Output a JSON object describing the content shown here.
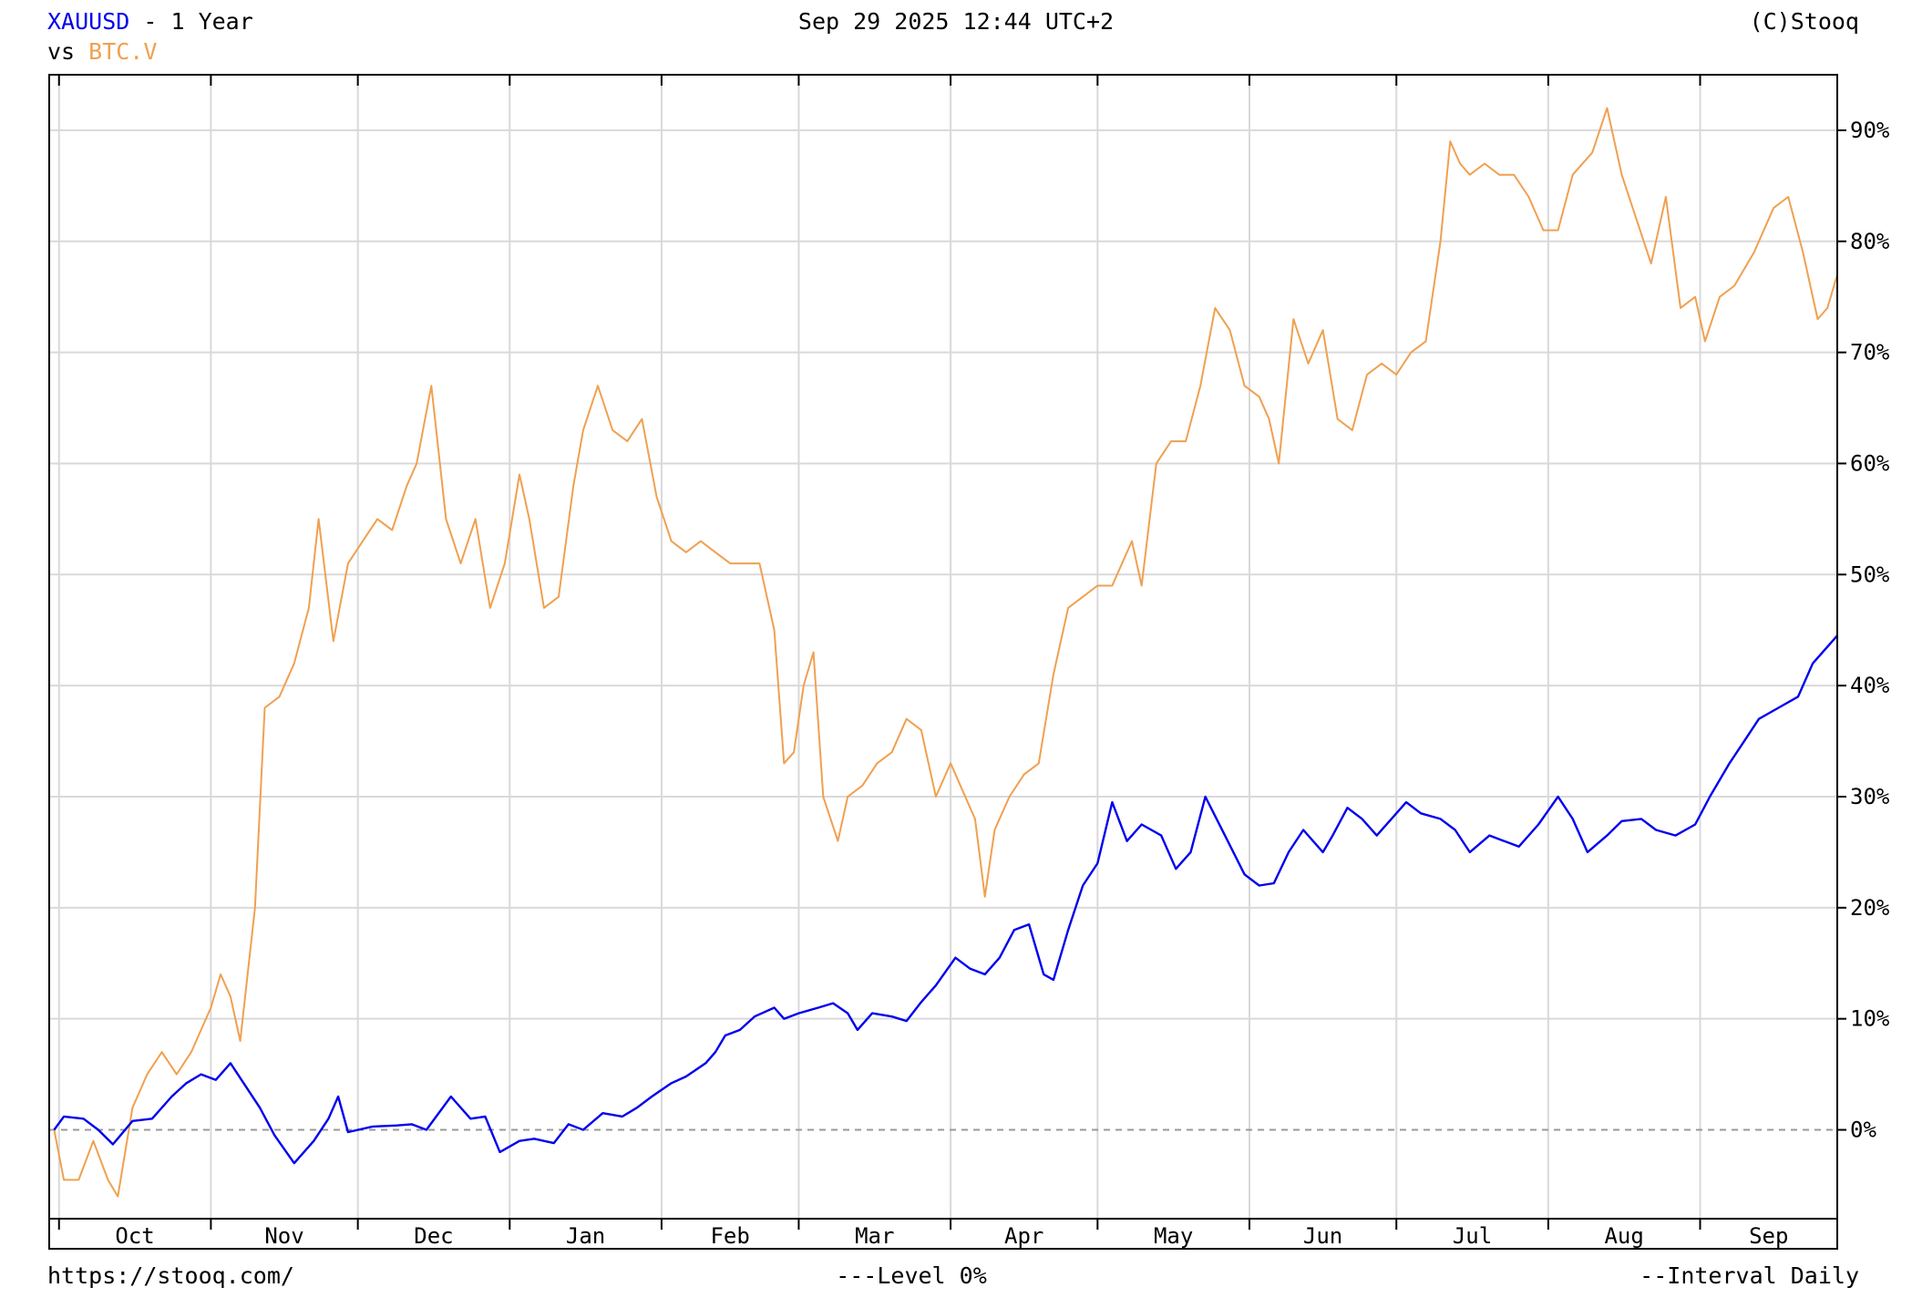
{
  "header": {
    "symbol": "XAUUSD",
    "period": " - 1 Year",
    "vs_label": "vs ",
    "compare_symbol": "BTC.V",
    "timestamp": "Sep 29 2025 12:44 UTC+2",
    "copyright": "(C)Stooq"
  },
  "footer": {
    "url": "https://stooq.com/",
    "level_text": "---Level 0%",
    "interval_text": "--Interval Daily"
  },
  "colors": {
    "xauusd": "#0000ee",
    "btc": "#f0a050",
    "grid": "#d9d9d9",
    "frame": "#000000",
    "zero_line": "#999999"
  },
  "chart_data": {
    "type": "line",
    "xlabel": "",
    "ylabel": "",
    "ylim": [
      -8,
      95
    ],
    "y_ticks": [
      0,
      10,
      20,
      30,
      40,
      50,
      60,
      70,
      80,
      90
    ],
    "y_tick_labels": [
      "0%",
      "10%",
      "20%",
      "30%",
      "40%",
      "50%",
      "60%",
      "70%",
      "80%",
      "90%"
    ],
    "x_tick_labels": [
      "Oct",
      "Nov",
      "Dec",
      "Jan",
      "Feb",
      "Mar",
      "Apr",
      "May",
      "Jun",
      "Jul",
      "Aug",
      "Sep"
    ],
    "x_range": [
      "2024-09-29",
      "2025-09-29"
    ],
    "month_boundaries": [
      "2024-10-01",
      "2024-11-01",
      "2024-12-01",
      "2025-01-01",
      "2025-02-01",
      "2025-03-01",
      "2025-04-01",
      "2025-05-01",
      "2025-06-01",
      "2025-07-01",
      "2025-08-01",
      "2025-09-01"
    ],
    "reference_line": {
      "y": 0,
      "label": "Level 0%"
    },
    "grid": true,
    "series": [
      {
        "name": "XAUUSD",
        "points": [
          [
            "2024-09-30",
            0
          ],
          [
            "2024-10-02",
            1.2
          ],
          [
            "2024-10-06",
            1
          ],
          [
            "2024-10-09",
            0
          ],
          [
            "2024-10-12",
            -1.3
          ],
          [
            "2024-10-16",
            0.8
          ],
          [
            "2024-10-20",
            1
          ],
          [
            "2024-10-24",
            3
          ],
          [
            "2024-10-27",
            4.2
          ],
          [
            "2024-10-30",
            5
          ],
          [
            "2024-11-02",
            4.5
          ],
          [
            "2024-11-05",
            6
          ],
          [
            "2024-11-08",
            4
          ],
          [
            "2024-11-11",
            2
          ],
          [
            "2024-11-14",
            -0.5
          ],
          [
            "2024-11-18",
            -3
          ],
          [
            "2024-11-22",
            -1
          ],
          [
            "2024-11-25",
            1
          ],
          [
            "2024-11-27",
            3
          ],
          [
            "2024-11-29",
            -0.2
          ],
          [
            "2024-12-04",
            0.3
          ],
          [
            "2024-12-09",
            0.4
          ],
          [
            "2024-12-12",
            0.5
          ],
          [
            "2024-12-15",
            0
          ],
          [
            "2024-12-20",
            3
          ],
          [
            "2024-12-24",
            1
          ],
          [
            "2024-12-27",
            1.2
          ],
          [
            "2024-12-30",
            -2
          ],
          [
            "2025-01-03",
            -1
          ],
          [
            "2025-01-06",
            -0.8
          ],
          [
            "2025-01-10",
            -1.2
          ],
          [
            "2025-01-13",
            0.5
          ],
          [
            "2025-01-16",
            0
          ],
          [
            "2025-01-20",
            1.5
          ],
          [
            "2025-01-24",
            1.2
          ],
          [
            "2025-01-27",
            2
          ],
          [
            "2025-01-30",
            3
          ],
          [
            "2025-02-03",
            4.2
          ],
          [
            "2025-02-06",
            4.8
          ],
          [
            "2025-02-10",
            6
          ],
          [
            "2025-02-12",
            7
          ],
          [
            "2025-02-14",
            8.5
          ],
          [
            "2025-02-17",
            9
          ],
          [
            "2025-02-20",
            10.2
          ],
          [
            "2025-02-24",
            11
          ],
          [
            "2025-02-26",
            10
          ],
          [
            "2025-03-01",
            10.5
          ],
          [
            "2025-03-05",
            11
          ],
          [
            "2025-03-08",
            11.4
          ],
          [
            "2025-03-11",
            10.5
          ],
          [
            "2025-03-13",
            9
          ],
          [
            "2025-03-16",
            10.5
          ],
          [
            "2025-03-20",
            10.2
          ],
          [
            "2025-03-23",
            9.8
          ],
          [
            "2025-03-26",
            11.5
          ],
          [
            "2025-03-29",
            13
          ],
          [
            "2025-04-02",
            15.5
          ],
          [
            "2025-04-05",
            14.5
          ],
          [
            "2025-04-08",
            14
          ],
          [
            "2025-04-11",
            15.5
          ],
          [
            "2025-04-14",
            18
          ],
          [
            "2025-04-17",
            18.5
          ],
          [
            "2025-04-20",
            14
          ],
          [
            "2025-04-22",
            13.5
          ],
          [
            "2025-04-25",
            18
          ],
          [
            "2025-04-28",
            22
          ],
          [
            "2025-05-01",
            24
          ],
          [
            "2025-05-04",
            29.5
          ],
          [
            "2025-05-07",
            26
          ],
          [
            "2025-05-10",
            27.5
          ],
          [
            "2025-05-14",
            26.5
          ],
          [
            "2025-05-17",
            23.5
          ],
          [
            "2025-05-20",
            25
          ],
          [
            "2025-05-23",
            30
          ],
          [
            "2025-05-27",
            26.5
          ],
          [
            "2025-05-31",
            23
          ],
          [
            "2025-06-03",
            22
          ],
          [
            "2025-06-06",
            22.2
          ],
          [
            "2025-06-09",
            25
          ],
          [
            "2025-06-12",
            27
          ],
          [
            "2025-06-16",
            25
          ],
          [
            "2025-06-18",
            26.5
          ],
          [
            "2025-06-21",
            29
          ],
          [
            "2025-06-24",
            28
          ],
          [
            "2025-06-27",
            26.5
          ],
          [
            "2025-06-30",
            28
          ],
          [
            "2025-07-03",
            29.5
          ],
          [
            "2025-07-06",
            28.5
          ],
          [
            "2025-07-10",
            28
          ],
          [
            "2025-07-13",
            27
          ],
          [
            "2025-07-16",
            25
          ],
          [
            "2025-07-20",
            26.5
          ],
          [
            "2025-07-23",
            26
          ],
          [
            "2025-07-26",
            25.5
          ],
          [
            "2025-07-30",
            27.5
          ],
          [
            "2025-08-03",
            30
          ],
          [
            "2025-08-06",
            28
          ],
          [
            "2025-08-09",
            25
          ],
          [
            "2025-08-13",
            26.5
          ],
          [
            "2025-08-16",
            27.8
          ],
          [
            "2025-08-20",
            28
          ],
          [
            "2025-08-23",
            27
          ],
          [
            "2025-08-27",
            26.5
          ],
          [
            "2025-08-31",
            27.5
          ],
          [
            "2025-09-03",
            30
          ],
          [
            "2025-09-07",
            33
          ],
          [
            "2025-09-10",
            35
          ],
          [
            "2025-09-13",
            37
          ],
          [
            "2025-09-17",
            38
          ],
          [
            "2025-09-21",
            39
          ],
          [
            "2025-09-24",
            42
          ],
          [
            "2025-09-29",
            44.5
          ]
        ]
      },
      {
        "name": "BTC.V",
        "points": [
          [
            "2024-09-30",
            0
          ],
          [
            "2024-10-02",
            -4.5
          ],
          [
            "2024-10-05",
            -4.5
          ],
          [
            "2024-10-08",
            -1
          ],
          [
            "2024-10-11",
            -4.5
          ],
          [
            "2024-10-13",
            -6
          ],
          [
            "2024-10-16",
            2
          ],
          [
            "2024-10-19",
            5
          ],
          [
            "2024-10-22",
            7
          ],
          [
            "2024-10-25",
            5
          ],
          [
            "2024-10-28",
            7
          ],
          [
            "2024-11-01",
            11
          ],
          [
            "2024-11-03",
            14
          ],
          [
            "2024-11-05",
            12
          ],
          [
            "2024-11-07",
            8
          ],
          [
            "2024-11-10",
            20
          ],
          [
            "2024-11-12",
            38
          ],
          [
            "2024-11-15",
            39
          ],
          [
            "2024-11-18",
            42
          ],
          [
            "2024-11-21",
            47
          ],
          [
            "2024-11-23",
            55
          ],
          [
            "2024-11-26",
            44
          ],
          [
            "2024-11-29",
            51
          ],
          [
            "2024-12-02",
            53
          ],
          [
            "2024-12-05",
            55
          ],
          [
            "2024-12-08",
            54
          ],
          [
            "2024-12-11",
            58
          ],
          [
            "2024-12-13",
            60
          ],
          [
            "2024-12-16",
            67
          ],
          [
            "2024-12-19",
            55
          ],
          [
            "2024-12-22",
            51
          ],
          [
            "2024-12-25",
            55
          ],
          [
            "2024-12-28",
            47
          ],
          [
            "2024-12-31",
            51
          ],
          [
            "2025-01-03",
            59
          ],
          [
            "2025-01-05",
            55
          ],
          [
            "2025-01-08",
            47
          ],
          [
            "2025-01-11",
            48
          ],
          [
            "2025-01-14",
            58
          ],
          [
            "2025-01-16",
            63
          ],
          [
            "2025-01-19",
            67
          ],
          [
            "2025-01-22",
            63
          ],
          [
            "2025-01-25",
            62
          ],
          [
            "2025-01-28",
            64
          ],
          [
            "2025-01-31",
            57
          ],
          [
            "2025-02-03",
            53
          ],
          [
            "2025-02-06",
            52
          ],
          [
            "2025-02-09",
            53
          ],
          [
            "2025-02-12",
            52
          ],
          [
            "2025-02-15",
            51
          ],
          [
            "2025-02-18",
            51
          ],
          [
            "2025-02-21",
            51
          ],
          [
            "2025-02-24",
            45
          ],
          [
            "2025-02-26",
            33
          ],
          [
            "2025-02-28",
            34
          ],
          [
            "2025-03-02",
            40
          ],
          [
            "2025-03-04",
            43
          ],
          [
            "2025-03-06",
            30
          ],
          [
            "2025-03-09",
            26
          ],
          [
            "2025-03-11",
            30
          ],
          [
            "2025-03-14",
            31
          ],
          [
            "2025-03-17",
            33
          ],
          [
            "2025-03-20",
            34
          ],
          [
            "2025-03-23",
            37
          ],
          [
            "2025-03-26",
            36
          ],
          [
            "2025-03-29",
            30
          ],
          [
            "2025-04-01",
            33
          ],
          [
            "2025-04-03",
            31
          ],
          [
            "2025-04-06",
            28
          ],
          [
            "2025-04-08",
            21
          ],
          [
            "2025-04-10",
            27
          ],
          [
            "2025-04-13",
            30
          ],
          [
            "2025-04-16",
            32
          ],
          [
            "2025-04-19",
            33
          ],
          [
            "2025-04-22",
            41
          ],
          [
            "2025-04-25",
            47
          ],
          [
            "2025-04-28",
            48
          ],
          [
            "2025-05-01",
            49
          ],
          [
            "2025-05-04",
            49
          ],
          [
            "2025-05-08",
            53
          ],
          [
            "2025-05-10",
            49
          ],
          [
            "2025-05-13",
            60
          ],
          [
            "2025-05-16",
            62
          ],
          [
            "2025-05-19",
            62
          ],
          [
            "2025-05-22",
            67
          ],
          [
            "2025-05-25",
            74
          ],
          [
            "2025-05-28",
            72
          ],
          [
            "2025-05-31",
            67
          ],
          [
            "2025-06-03",
            66
          ],
          [
            "2025-06-05",
            64
          ],
          [
            "2025-06-07",
            60
          ],
          [
            "2025-06-10",
            73
          ],
          [
            "2025-06-13",
            69
          ],
          [
            "2025-06-16",
            72
          ],
          [
            "2025-06-19",
            64
          ],
          [
            "2025-06-22",
            63
          ],
          [
            "2025-06-25",
            68
          ],
          [
            "2025-06-28",
            69
          ],
          [
            "2025-07-01",
            68
          ],
          [
            "2025-07-04",
            70
          ],
          [
            "2025-07-07",
            71
          ],
          [
            "2025-07-10",
            80
          ],
          [
            "2025-07-12",
            89
          ],
          [
            "2025-07-14",
            87
          ],
          [
            "2025-07-16",
            86
          ],
          [
            "2025-07-19",
            87
          ],
          [
            "2025-07-22",
            86
          ],
          [
            "2025-07-25",
            86
          ],
          [
            "2025-07-28",
            84
          ],
          [
            "2025-07-31",
            81
          ],
          [
            "2025-08-03",
            81
          ],
          [
            "2025-08-06",
            86
          ],
          [
            "2025-08-10",
            88
          ],
          [
            "2025-08-13",
            92
          ],
          [
            "2025-08-16",
            86
          ],
          [
            "2025-08-19",
            82
          ],
          [
            "2025-08-22",
            78
          ],
          [
            "2025-08-25",
            84
          ],
          [
            "2025-08-28",
            74
          ],
          [
            "2025-08-31",
            75
          ],
          [
            "2025-09-02",
            71
          ],
          [
            "2025-09-05",
            75
          ],
          [
            "2025-09-08",
            76
          ],
          [
            "2025-09-12",
            79
          ],
          [
            "2025-09-16",
            83
          ],
          [
            "2025-09-19",
            84
          ],
          [
            "2025-09-22",
            79
          ],
          [
            "2025-09-25",
            73
          ],
          [
            "2025-09-27",
            74
          ],
          [
            "2025-09-29",
            77
          ]
        ]
      }
    ]
  }
}
